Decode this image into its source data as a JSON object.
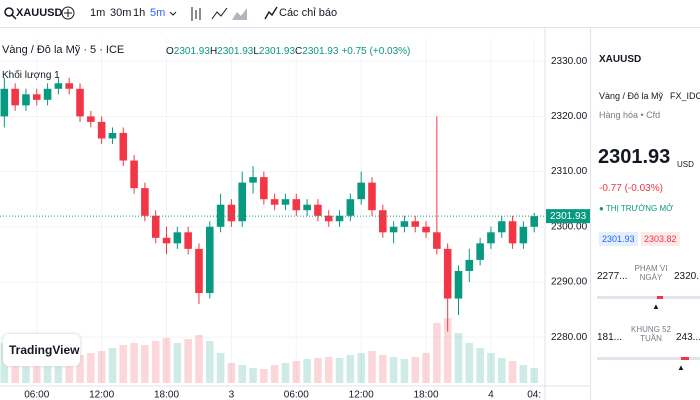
{
  "toolbar": {
    "symbol": "XAUUSD",
    "intervals": [
      "1m",
      "30m",
      "1h",
      "5m"
    ],
    "indicators": "Các chỉ báo"
  },
  "legend": {
    "title": "Vàng / Đô la Mỹ · 5 · ICE",
    "ohlc": [
      {
        "key": "O",
        "value": "2301.93"
      },
      {
        "key": "H",
        "value": "2301.93"
      },
      {
        "key": "L",
        "value": "2301.93"
      },
      {
        "key": "C",
        "value": "2301.93"
      }
    ],
    "change": "+0.75 (+0.03%)"
  },
  "volume": {
    "label": "Khối lượng",
    "value": "1"
  },
  "logo": "TradingView",
  "chart_data": {
    "type": "candlestick",
    "up_color": "#089981",
    "down_color": "#f23645",
    "grid": true,
    "x": [
      3,
      4,
      5,
      6,
      7,
      8,
      9,
      10,
      11,
      12,
      13,
      14,
      15,
      16,
      17,
      18,
      19,
      20,
      21,
      22,
      23,
      24,
      25,
      26,
      27,
      28,
      29,
      30,
      31,
      32,
      33,
      34,
      35,
      36,
      37,
      38,
      39,
      40,
      41,
      42,
      43,
      44,
      45,
      46,
      47,
      48,
      49,
      50,
      51,
      52
    ],
    "open": [
      2320,
      2325,
      2322,
      2324,
      2323,
      2325,
      2326,
      2325,
      2320,
      2319,
      2316,
      2317,
      2312,
      2307,
      2302,
      2298,
      2297,
      2299,
      2296,
      2288,
      2300,
      2304,
      2301,
      2308,
      2309,
      2305,
      2304,
      2305,
      2303,
      2304,
      2302,
      2301,
      2302,
      2305,
      2308,
      2303,
      2299,
      2300,
      2301,
      2300,
      2299,
      2296,
      2287,
      2292,
      2294,
      2297,
      2299,
      2301,
      2297,
      2300
    ],
    "high": [
      2327,
      2326,
      2325,
      2325,
      2326,
      2327,
      2327,
      2326,
      2321,
      2320,
      2318,
      2318,
      2313,
      2308,
      2303,
      2300,
      2300,
      2300,
      2297,
      2301,
      2306,
      2305,
      2310,
      2311,
      2310,
      2306,
      2306,
      2306,
      2305,
      2305,
      2303,
      2303,
      2306,
      2310,
      2309,
      2304,
      2301,
      2302,
      2302,
      2301,
      2320,
      2297,
      2293,
      2296,
      2298,
      2300,
      2302,
      2302,
      2301,
      2302.5
    ],
    "low": [
      2318,
      2321,
      2321,
      2322,
      2322,
      2324,
      2324,
      2319,
      2318,
      2315,
      2315,
      2311,
      2306,
      2301,
      2297,
      2295,
      2296,
      2295,
      2286,
      2287,
      2299,
      2300,
      2300,
      2306,
      2304,
      2303,
      2303,
      2302,
      2302,
      2301,
      2300,
      2300,
      2301,
      2304,
      2302,
      2298,
      2297,
      2299,
      2299,
      2298,
      2295,
      2281,
      2284,
      2290,
      2293,
      2296,
      2298,
      2296,
      2296,
      2299
    ],
    "close": [
      2325,
      2322,
      2324,
      2323,
      2325,
      2326,
      2325,
      2320,
      2319,
      2316,
      2317,
      2312,
      2307,
      2302,
      2298,
      2297,
      2299,
      2296,
      2288,
      2300,
      2304,
      2301,
      2308,
      2309,
      2305,
      2304,
      2305,
      2303,
      2304,
      2302,
      2301,
      2302,
      2305,
      2308,
      2303,
      2299,
      2300,
      2301,
      2300,
      2299,
      2296,
      2287,
      2292,
      2294,
      2297,
      2299,
      2301,
      2297,
      2300,
      2301.93
    ],
    "volume": [
      40,
      35,
      30,
      28,
      25,
      22,
      25,
      28,
      30,
      32,
      35,
      38,
      40,
      38,
      42,
      45,
      40,
      44,
      48,
      42,
      30,
      20,
      18,
      15,
      14,
      18,
      20,
      22,
      24,
      25,
      26,
      25,
      28,
      30,
      32,
      28,
      26,
      24,
      26,
      30,
      60,
      65,
      50,
      40,
      35,
      30,
      25,
      22,
      18,
      15
    ],
    "xlim": [
      2.6,
      53
    ],
    "ylim": [
      2271.7,
      2334.2
    ],
    "xticks": [
      {
        "value": 6,
        "label": "06:00"
      },
      {
        "value": 12,
        "label": "12:00"
      },
      {
        "value": 18,
        "label": "18:00"
      },
      {
        "value": 24,
        "label": "3"
      },
      {
        "value": 30,
        "label": "06:00"
      },
      {
        "value": 36,
        "label": "12:00"
      },
      {
        "value": 42,
        "label": "18:00"
      },
      {
        "value": 48,
        "label": "4"
      },
      {
        "value": 52,
        "label": "04:"
      }
    ],
    "yticks": [
      {
        "value": 2280,
        "label": "2280.00"
      },
      {
        "value": 2290,
        "label": "2290.00"
      },
      {
        "value": 2300,
        "label": "2300.00"
      },
      {
        "value": 2310,
        "label": "2310.00"
      },
      {
        "value": 2320,
        "label": "2320.00"
      },
      {
        "value": 2330,
        "label": "2330.00"
      }
    ]
  },
  "sidebar": {
    "symbol": "XAUUSD",
    "name": "Vàng / Đô la Mỹ",
    "exchange": "FX_IDC",
    "category": "Hàng hóa • Cfd",
    "price": "2301.93",
    "currency": "USD",
    "change": "-0.77 (-0.03%)",
    "status": "THỊ TRƯỜNG MỞ",
    "bid": "2301.93",
    "ask": "2303.82",
    "day_range": {
      "low": "2277...",
      "label": "PHẠM VI NGÀY",
      "high": "2320..."
    },
    "week52": {
      "low": "181...",
      "label": "KHUNG 52 TUẦN",
      "high": "243..."
    }
  }
}
